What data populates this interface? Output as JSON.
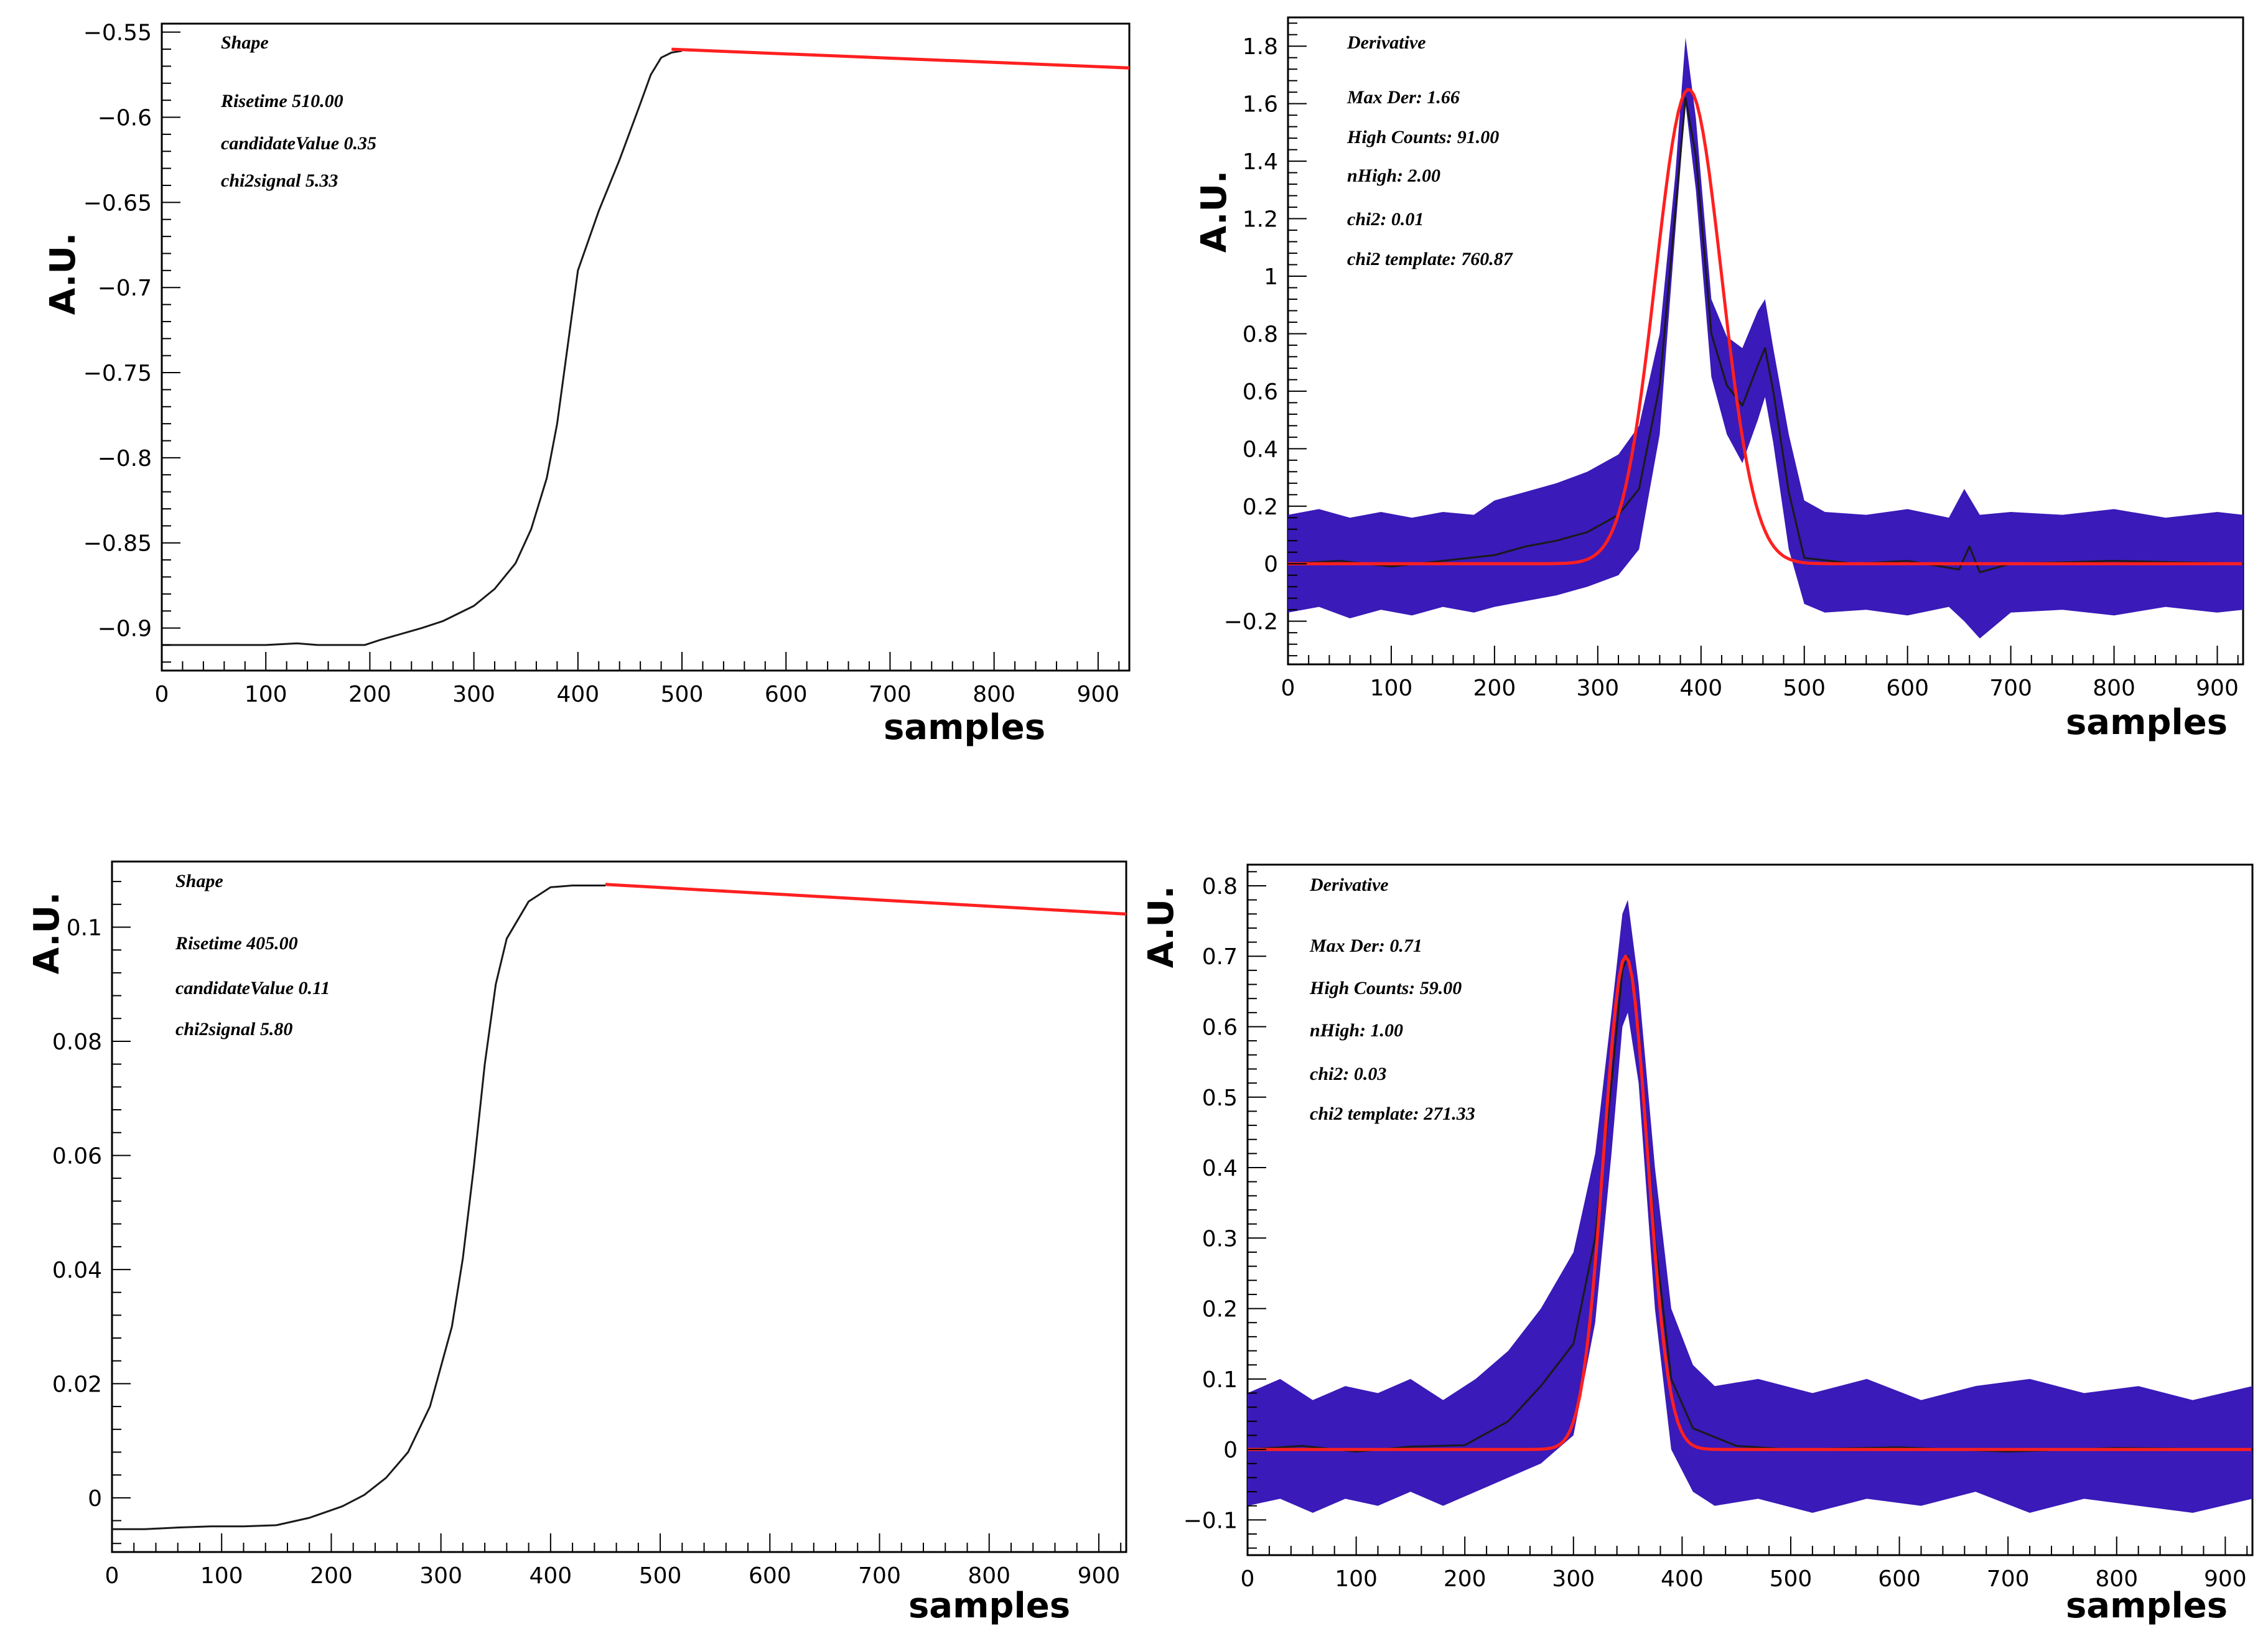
{
  "colors": {
    "data": "#1a1a1a",
    "band": "#3a1ab8",
    "fit": "#ff2020",
    "frame": "#000000"
  },
  "chart_data": [
    {
      "id": "shape-top",
      "type": "line",
      "title": "Shape",
      "annotations": [
        "Risetime 510.00",
        "candidateValue 0.35",
        "chi2signal 5.33"
      ],
      "xlabel": "samples",
      "ylabel": "A.U.",
      "xlim": [
        0,
        930
      ],
      "ylim": [
        -0.925,
        -0.545
      ],
      "xticks": [
        0,
        100,
        200,
        300,
        400,
        500,
        600,
        700,
        800,
        900
      ],
      "xtick_labels": [
        "0",
        "100",
        "200",
        "300",
        "400",
        "500",
        "600",
        "700",
        "800",
        "900"
      ],
      "yticks": [
        -0.55,
        -0.6,
        -0.65,
        -0.7,
        -0.75,
        -0.8,
        -0.85,
        -0.9
      ],
      "ytick_labels": [
        "−0.55",
        "−0.6",
        "−0.65",
        "−0.7",
        "−0.75",
        "−0.8",
        "−0.85",
        "−0.9"
      ],
      "series": [
        {
          "name": "waveform",
          "style": "data",
          "x": [
            0,
            50,
            100,
            130,
            150,
            195,
            210,
            250,
            270,
            300,
            320,
            340,
            355,
            370,
            380,
            390,
            400,
            420,
            440,
            460,
            470,
            480,
            490,
            500
          ],
          "y": [
            -0.91,
            -0.91,
            -0.91,
            -0.909,
            -0.91,
            -0.91,
            -0.907,
            -0.9,
            -0.896,
            -0.887,
            -0.877,
            -0.862,
            -0.842,
            -0.812,
            -0.78,
            -0.735,
            -0.69,
            -0.655,
            -0.625,
            -0.592,
            -0.575,
            -0.565,
            -0.562,
            -0.561
          ]
        },
        {
          "name": "fit",
          "style": "fit",
          "x": [
            490,
            930
          ],
          "y": [
            -0.56,
            -0.571
          ]
        }
      ]
    },
    {
      "id": "derivative-top",
      "type": "line",
      "title": "Derivative",
      "annotations": [
        "Max Der: 1.66",
        "High Counts: 91.00",
        "nHigh: 2.00",
        "chi2: 0.01",
        "chi2 template: 760.87"
      ],
      "xlabel": "samples",
      "ylabel": "A.U.",
      "xlim": [
        0,
        925
      ],
      "ylim": [
        -0.35,
        1.9
      ],
      "xticks": [
        0,
        100,
        200,
        300,
        400,
        500,
        600,
        700,
        800,
        900
      ],
      "xtick_labels": [
        "0",
        "100",
        "200",
        "300",
        "400",
        "500",
        "600",
        "700",
        "800",
        "900"
      ],
      "yticks": [
        -0.2,
        0,
        0.2,
        0.4,
        0.6,
        0.8,
        1,
        1.2,
        1.4,
        1.6,
        1.8
      ],
      "ytick_labels": [
        "−0.2",
        "0",
        "0.2",
        "0.4",
        "0.6",
        "0.8",
        "1",
        "1.2",
        "1.4",
        "1.6",
        "1.8"
      ],
      "band_upper": {
        "x": [
          0,
          30,
          60,
          90,
          120,
          150,
          180,
          200,
          230,
          260,
          290,
          320,
          340,
          360,
          375,
          385,
          395,
          410,
          425,
          440,
          455,
          462,
          470,
          485,
          500,
          520,
          560,
          600,
          640,
          655,
          670,
          700,
          750,
          800,
          850,
          900,
          925
        ],
        "y": [
          0.17,
          0.19,
          0.16,
          0.18,
          0.16,
          0.18,
          0.17,
          0.22,
          0.25,
          0.28,
          0.32,
          0.38,
          0.48,
          0.8,
          1.35,
          1.83,
          1.55,
          0.92,
          0.79,
          0.75,
          0.88,
          0.92,
          0.75,
          0.45,
          0.22,
          0.18,
          0.17,
          0.19,
          0.16,
          0.26,
          0.17,
          0.18,
          0.17,
          0.19,
          0.16,
          0.18,
          0.17
        ]
      },
      "band_lower": {
        "x": [
          0,
          30,
          60,
          90,
          120,
          150,
          180,
          200,
          230,
          260,
          290,
          320,
          340,
          360,
          375,
          385,
          395,
          410,
          425,
          440,
          455,
          462,
          470,
          485,
          500,
          520,
          560,
          600,
          640,
          655,
          670,
          700,
          750,
          800,
          850,
          900,
          925
        ],
        "y": [
          -0.17,
          -0.15,
          -0.19,
          -0.16,
          -0.18,
          -0.15,
          -0.17,
          -0.15,
          -0.13,
          -0.11,
          -0.08,
          -0.04,
          0.05,
          0.45,
          1.15,
          1.6,
          1.3,
          0.65,
          0.45,
          0.35,
          0.5,
          0.58,
          0.42,
          0.05,
          -0.14,
          -0.17,
          -0.16,
          -0.18,
          -0.15,
          -0.2,
          -0.26,
          -0.17,
          -0.16,
          -0.18,
          -0.15,
          -0.17,
          -0.16
        ]
      },
      "series": [
        {
          "name": "derivative",
          "style": "data",
          "x": [
            0,
            50,
            100,
            150,
            200,
            230,
            260,
            290,
            320,
            340,
            360,
            375,
            385,
            395,
            410,
            425,
            440,
            455,
            462,
            470,
            485,
            500,
            550,
            600,
            650,
            660,
            670,
            700,
            800,
            925
          ],
          "y": [
            0.0,
            0.01,
            -0.01,
            0.01,
            0.03,
            0.06,
            0.08,
            0.11,
            0.17,
            0.26,
            0.62,
            1.22,
            1.62,
            1.42,
            0.8,
            0.62,
            0.55,
            0.69,
            0.75,
            0.6,
            0.25,
            0.02,
            0.0,
            0.01,
            -0.02,
            0.06,
            -0.03,
            0.0,
            0.01,
            0.0
          ]
        },
        {
          "name": "gaussian template",
          "style": "fit",
          "kind": "gaussian",
          "amplitude": 1.65,
          "mean": 388,
          "sigma": 32,
          "xmin": 0,
          "xmax": 925
        }
      ]
    },
    {
      "id": "shape-bottom",
      "type": "line",
      "title": "Shape",
      "annotations": [
        "Risetime 405.00",
        "candidateValue 0.11",
        "chi2signal 5.80"
      ],
      "xlabel": "samples",
      "ylabel": "A.U.",
      "xlim": [
        0,
        925
      ],
      "ylim": [
        -0.0095,
        0.1115
      ],
      "xticks": [
        0,
        100,
        200,
        300,
        400,
        500,
        600,
        700,
        800,
        900
      ],
      "xtick_labels": [
        "0",
        "100",
        "200",
        "300",
        "400",
        "500",
        "600",
        "700",
        "800",
        "900"
      ],
      "yticks": [
        0,
        0.02,
        0.04,
        0.06,
        0.08,
        0.1
      ],
      "ytick_labels": [
        "0",
        "0.02",
        "0.04",
        "0.06",
        "0.08",
        "0.1"
      ],
      "series": [
        {
          "name": "waveform",
          "style": "data",
          "x": [
            0,
            30,
            60,
            90,
            120,
            150,
            180,
            210,
            230,
            250,
            270,
            290,
            310,
            320,
            330,
            340,
            350,
            360,
            380,
            400,
            420,
            450
          ],
          "y": [
            -0.0055,
            -0.0055,
            -0.0052,
            -0.005,
            -0.005,
            -0.0048,
            -0.0035,
            -0.0015,
            0.0005,
            0.0035,
            0.008,
            0.016,
            0.03,
            0.042,
            0.058,
            0.076,
            0.09,
            0.098,
            0.1045,
            0.107,
            0.1073,
            0.1073
          ]
        },
        {
          "name": "fit",
          "style": "fit",
          "x": [
            450,
            925
          ],
          "y": [
            0.1075,
            0.1023
          ]
        }
      ]
    },
    {
      "id": "derivative-bottom",
      "type": "line",
      "title": "Derivative",
      "annotations": [
        "Max Der: 0.71",
        "High Counts: 59.00",
        "nHigh: 1.00",
        "chi2: 0.03",
        "chi2 template: 271.33"
      ],
      "xlabel": "samples",
      "ylabel": "A.U.",
      "xlim": [
        0,
        925
      ],
      "ylim": [
        -0.15,
        0.83
      ],
      "xticks": [
        0,
        100,
        200,
        300,
        400,
        500,
        600,
        700,
        800,
        900
      ],
      "xtick_labels": [
        "0",
        "100",
        "200",
        "300",
        "400",
        "500",
        "600",
        "700",
        "800",
        "900"
      ],
      "yticks": [
        -0.1,
        0,
        0.1,
        0.2,
        0.3,
        0.4,
        0.5,
        0.6,
        0.7,
        0.8
      ],
      "ytick_labels": [
        "−0.1",
        "0",
        "0.1",
        "0.2",
        "0.3",
        "0.4",
        "0.5",
        "0.6",
        "0.7",
        "0.8"
      ],
      "band_upper": {
        "x": [
          0,
          30,
          60,
          90,
          120,
          150,
          180,
          210,
          240,
          270,
          300,
          320,
          335,
          345,
          350,
          360,
          375,
          390,
          410,
          430,
          470,
          520,
          570,
          620,
          670,
          720,
          770,
          820,
          870,
          925
        ],
        "y": [
          0.08,
          0.1,
          0.07,
          0.09,
          0.08,
          0.1,
          0.07,
          0.1,
          0.14,
          0.2,
          0.28,
          0.42,
          0.62,
          0.76,
          0.78,
          0.66,
          0.4,
          0.2,
          0.12,
          0.09,
          0.1,
          0.08,
          0.1,
          0.07,
          0.09,
          0.1,
          0.08,
          0.09,
          0.07,
          0.09
        ]
      },
      "band_lower": {
        "x": [
          0,
          30,
          60,
          90,
          120,
          150,
          180,
          210,
          240,
          270,
          300,
          320,
          335,
          345,
          350,
          360,
          375,
          390,
          410,
          430,
          470,
          520,
          570,
          620,
          670,
          720,
          770,
          820,
          870,
          925
        ],
        "y": [
          -0.08,
          -0.07,
          -0.09,
          -0.07,
          -0.08,
          -0.06,
          -0.08,
          -0.06,
          -0.04,
          -0.02,
          0.02,
          0.18,
          0.42,
          0.6,
          0.62,
          0.52,
          0.2,
          0.0,
          -0.06,
          -0.08,
          -0.07,
          -0.09,
          -0.07,
          -0.08,
          -0.06,
          -0.09,
          -0.07,
          -0.08,
          -0.09,
          -0.07
        ]
      },
      "series": [
        {
          "name": "derivative",
          "style": "data",
          "x": [
            0,
            50,
            100,
            150,
            200,
            240,
            270,
            300,
            320,
            335,
            345,
            350,
            360,
            375,
            390,
            410,
            450,
            500,
            600,
            700,
            800,
            925
          ],
          "y": [
            0.0,
            0.005,
            -0.003,
            0.004,
            0.006,
            0.04,
            0.09,
            0.15,
            0.3,
            0.52,
            0.68,
            0.7,
            0.6,
            0.3,
            0.1,
            0.03,
            0.005,
            0.0,
            0.003,
            -0.003,
            0.002,
            0.0
          ]
        },
        {
          "name": "gaussian template",
          "style": "fit",
          "kind": "gaussian",
          "amplitude": 0.7,
          "mean": 348,
          "sigma": 20,
          "xmin": 0,
          "xmax": 925
        }
      ]
    }
  ]
}
